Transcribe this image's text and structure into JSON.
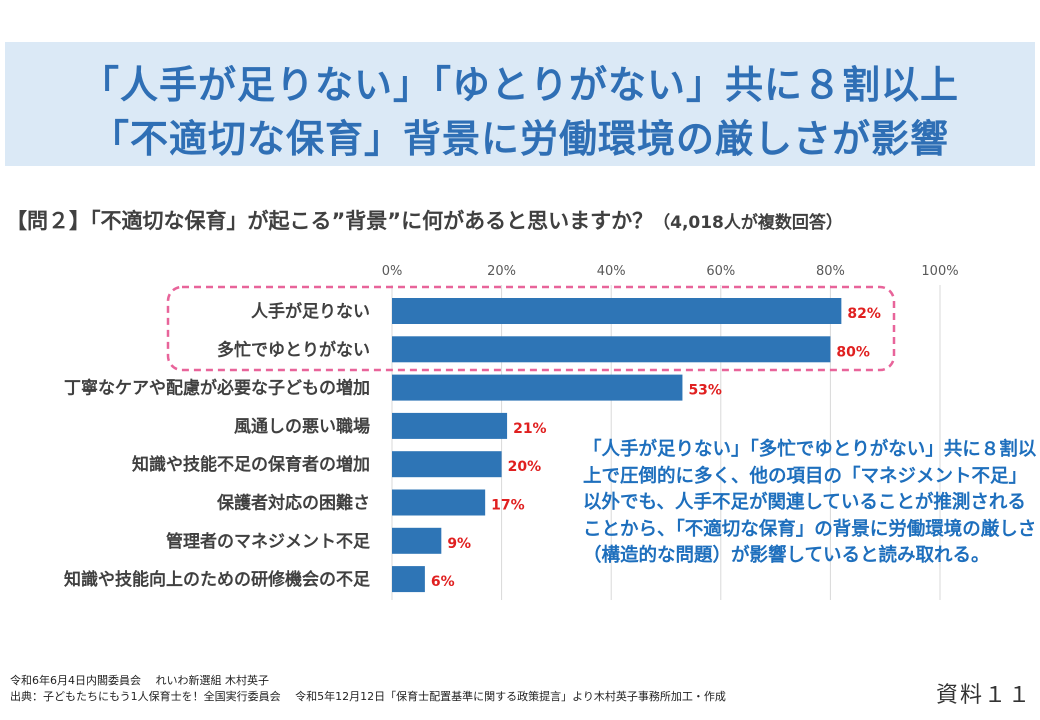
{
  "header": {
    "line1": "「人手が足りない」「ゆとりがない」共に８割以上",
    "line2": "「不適切な保育」背景に労働環境の厳しさが影響"
  },
  "question": {
    "text": "【問２】「不適切な保育」が起こる”背景”に何があると思いますか？",
    "respondents": "（4,018人が複数回答）"
  },
  "chart_data": {
    "type": "bar",
    "orientation": "horizontal",
    "categories": [
      "人手が足りない",
      "多忙でゆとりがない",
      "丁寧なケアや配慮が必要な子どもの増加",
      "風通しの悪い職場",
      "知識や技能不足の保育者の増加",
      "保護者対応の困難さ",
      "管理者のマネジメント不足",
      "知識や技能向上のための研修機会の不足"
    ],
    "values": [
      82,
      80,
      53,
      21,
      20,
      17,
      9,
      6
    ],
    "data_labels": [
      "82%",
      "80%",
      "53%",
      "21%",
      "20%",
      "17%",
      "9%",
      "6%"
    ],
    "xlim": [
      0,
      100
    ],
    "xticks": [
      "0%",
      "20%",
      "40%",
      "60%",
      "80%",
      "100%"
    ],
    "grid": true,
    "colors": {
      "bar": "#2e75b6",
      "label": "#e02020",
      "highlight": "#e8649a"
    }
  },
  "note": "「人手が足りない」「多忙でゆとりがない」共に８割以上で圧倒的に多く、他の項目の「マネジメント不足」以外でも、人手不足が関連していることが推測されることから、「不適切な保育」の背景に労働環境の厳しさ（構造的な問題）が影響していると読み取れる。",
  "footer": {
    "line1": "令和6年6月4日内閣委員会　 れいわ新選組 木村英子",
    "line2": "出典：子どもたちにもう1人保育士を！全国実行委員会　 令和5年12月12日「保育士配置基準に関する政策提言」より木村英子事務所加工・作成",
    "doc": "資料１１"
  }
}
